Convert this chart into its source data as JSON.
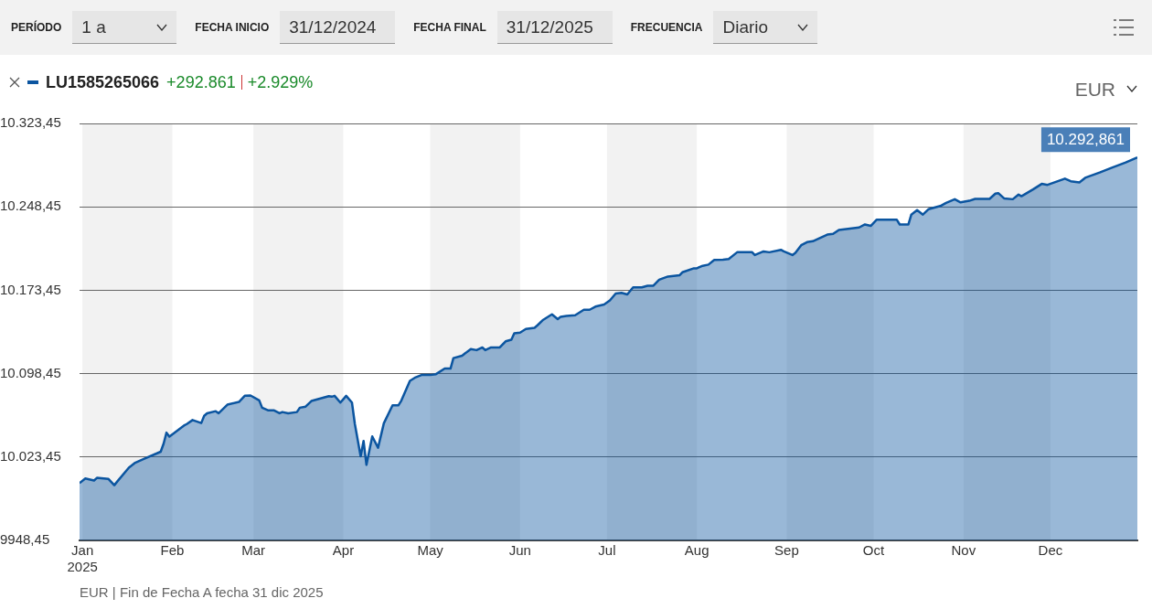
{
  "chart_data": {
    "type": "area",
    "title": "LU1585265066",
    "annotations": [
      "PERÍODO",
      "1 a",
      "FECHA INICIO",
      "31/12/2024",
      "FECHA FINAL",
      "31/12/2025",
      "FRECUENCIA",
      "Diario",
      "+292.861",
      "+2.929%",
      "EUR",
      "EUR | Fin de Fecha A fecha 31 dic 2025",
      {
        "text": "10.292,861",
        "x": "2025-12-31",
        "y": 10292.861
      }
    ],
    "x": [
      "2024-12-31",
      "2025-01-02",
      "2025-01-05",
      "2025-01-06",
      "2025-01-10",
      "2025-01-12",
      "2025-01-13",
      "2025-01-17",
      "2025-01-19",
      "2025-01-22",
      "2025-01-28",
      "2025-01-29",
      "2025-01-30",
      "2025-01-31",
      "2025-02-05",
      "2025-02-06",
      "2025-02-08",
      "2025-02-11",
      "2025-02-12",
      "2025-02-13",
      "2025-02-16",
      "2025-02-17",
      "2025-02-20",
      "2025-02-24",
      "2025-02-26",
      "2025-02-28",
      "2025-03-03",
      "2025-03-04",
      "2025-03-06",
      "2025-03-08",
      "2025-03-10",
      "2025-03-11",
      "2025-03-13",
      "2025-03-16",
      "2025-03-17",
      "2025-03-19",
      "2025-03-21",
      "2025-03-27",
      "2025-03-28",
      "2025-03-29",
      "2025-03-31",
      "2025-04-01",
      "2025-04-02",
      "2025-04-04",
      "2025-04-05",
      "2025-04-07",
      "2025-04-08",
      "2025-04-09",
      "2025-04-11",
      "2025-04-13",
      "2025-04-15",
      "2025-04-18",
      "2025-04-20",
      "2025-04-21",
      "2025-04-24",
      "2025-04-26",
      "2025-04-28",
      "2025-05-01",
      "2025-05-03",
      "2025-05-06",
      "2025-05-08",
      "2025-05-09",
      "2025-05-12",
      "2025-05-15",
      "2025-05-17",
      "2025-05-19",
      "2025-05-20",
      "2025-05-22",
      "2025-05-25",
      "2025-05-27",
      "2025-05-29",
      "2025-05-30",
      "2025-06-01",
      "2025-06-03",
      "2025-06-06",
      "2025-06-07",
      "2025-06-09",
      "2025-06-12",
      "2025-06-14",
      "2025-06-15",
      "2025-06-17",
      "2025-06-20",
      "2025-06-23",
      "2025-06-25",
      "2025-06-27",
      "2025-06-30",
      "2025-07-02",
      "2025-07-04",
      "2025-07-06",
      "2025-07-08",
      "2025-07-10",
      "2025-07-13",
      "2025-07-15",
      "2025-07-17",
      "2025-07-19",
      "2025-07-22",
      "2025-07-26",
      "2025-07-27",
      "2025-07-31",
      "2025-08-01",
      "2025-08-03",
      "2025-08-05",
      "2025-08-07",
      "2025-08-10",
      "2025-08-12",
      "2025-08-15",
      "2025-08-20",
      "2025-08-21",
      "2025-08-24",
      "2025-08-26",
      "2025-08-30",
      "2025-08-31",
      "2025-09-03",
      "2025-09-04",
      "2025-09-06",
      "2025-09-08",
      "2025-09-10",
      "2025-09-15",
      "2025-09-17",
      "2025-09-19",
      "2025-09-26",
      "2025-09-28",
      "2025-09-30",
      "2025-10-02",
      "2025-10-09",
      "2025-10-10",
      "2025-10-13",
      "2025-10-14",
      "2025-10-16",
      "2025-10-18",
      "2025-10-20",
      "2025-10-24",
      "2025-10-26",
      "2025-10-29",
      "2025-10-31",
      "2025-11-03",
      "2025-11-05",
      "2025-11-10",
      "2025-11-12",
      "2025-11-13",
      "2025-11-15",
      "2025-11-18",
      "2025-11-20",
      "2025-11-21",
      "2025-11-25",
      "2025-11-28",
      "2025-11-30",
      "2025-12-06",
      "2025-12-08",
      "2025-12-11",
      "2025-12-13",
      "2025-12-18",
      "2025-12-22",
      "2025-12-27",
      "2025-12-31"
    ],
    "series": [
      {
        "color": "#0b55a0",
        "values": [
          10000.0,
          10004.2,
          10002.3,
          10004.7,
          10003.7,
          9998.1,
          10001.4,
          10013.8,
          10018.0,
          10021.5,
          10028.2,
          10035.4,
          10045.4,
          10041.8,
          10051.7,
          10053.1,
          10056.7,
          10054.0,
          10060.5,
          10062.8,
          10064.7,
          10062.8,
          10070.5,
          10073.0,
          10078.5,
          10078.8,
          10074.4,
          10067.8,
          10065.5,
          10065.5,
          10062.8,
          10063.9,
          10062.8,
          10063.9,
          10067.8,
          10068.8,
          10073.8,
          10078.2,
          10077.7,
          10078.5,
          10072.4,
          10075.4,
          10078.5,
          10072.4,
          10053.1,
          10024.1,
          10037.9,
          10016.4,
          10042.0,
          10031.8,
          10053.8,
          10069.9,
          10069.9,
          10074.0,
          10091.9,
          10095.2,
          10097.2,
          10097.2,
          10098.0,
          10103.0,
          10103.0,
          10112.4,
          10114.6,
          10120.6,
          10119.6,
          10122.0,
          10119.6,
          10122.0,
          10122.0,
          10127.5,
          10128.9,
          10134.7,
          10135.3,
          10138.6,
          10139.7,
          10141.9,
          10146.9,
          10151.8,
          10147.4,
          10149.6,
          10150.4,
          10151.0,
          10155.9,
          10155.9,
          10158.7,
          10160.6,
          10164.3,
          10170.5,
          10171.1,
          10169.7,
          10176.1,
          10176.1,
          10177.5,
          10177.5,
          10182.9,
          10185.8,
          10186.9,
          10189.6,
          10193.2,
          10193.2,
          10195.4,
          10196.5,
          10200.7,
          10201.0,
          10201.5,
          10207.8,
          10207.8,
          10205.1,
          10208.4,
          10207.6,
          10209.8,
          10208.4,
          10205.1,
          10207.0,
          10213.9,
          10216.7,
          10217.5,
          10223.5,
          10224.1,
          10227.7,
          10229.9,
          10232.6,
          10231.3,
          10236.8,
          10236.8,
          10232.6,
          10232.6,
          10241.5,
          10245.6,
          10241.5,
          10246.4,
          10249.2,
          10252.0,
          10255.3,
          10252.5,
          10253.9,
          10255.6,
          10255.6,
          10260.3,
          10260.8,
          10256.1,
          10255.3,
          10259.5,
          10258.0,
          10264.1,
          10269.1,
          10268.2,
          10273.8,
          10271.5,
          10270.4,
          10274.6,
          10279.3,
          10283.5,
          10288.4,
          10292.861
        ]
      }
    ],
    "xlim": [
      "2024-12-31",
      "2025-12-31"
    ],
    "xticks": [
      {
        "value": "2025-01-01",
        "label": "Jan\n2025"
      },
      {
        "value": "2025-02-01",
        "label": "Feb"
      },
      {
        "value": "2025-03-01",
        "label": "Mar"
      },
      {
        "value": "2025-04-01",
        "label": "Apr"
      },
      {
        "value": "2025-05-01",
        "label": "May"
      },
      {
        "value": "2025-06-01",
        "label": "Jun"
      },
      {
        "value": "2025-07-01",
        "label": "Jul"
      },
      {
        "value": "2025-08-01",
        "label": "Aug"
      },
      {
        "value": "2025-09-01",
        "label": "Sep"
      },
      {
        "value": "2025-10-01",
        "label": "Oct"
      },
      {
        "value": "2025-11-01",
        "label": "Nov"
      },
      {
        "value": "2025-12-01",
        "label": "Dec"
      }
    ],
    "ylim": [
      9948.45,
      10323.45
    ],
    "yticks": [
      {
        "value": 9948.45,
        "label": "9948,45"
      },
      {
        "value": 10023.45,
        "label": "10.023,45"
      },
      {
        "value": 10098.45,
        "label": "10.098,45"
      },
      {
        "value": 10173.45,
        "label": "10.173,45"
      },
      {
        "value": 10248.45,
        "label": "10.248,45"
      },
      {
        "value": 10323.45,
        "label": "10.323,45"
      }
    ],
    "bands": [
      {
        "axis": "x",
        "from": "2025-01-01",
        "to": "2025-02-01",
        "color": "#f2f2f2"
      },
      {
        "axis": "x",
        "from": "2025-03-01",
        "to": "2025-04-01",
        "color": "#f2f2f2"
      },
      {
        "axis": "x",
        "from": "2025-05-01",
        "to": "2025-06-01",
        "color": "#f2f2f2"
      },
      {
        "axis": "x",
        "from": "2025-07-01",
        "to": "2025-08-01",
        "color": "#f2f2f2"
      },
      {
        "axis": "x",
        "from": "2025-09-01",
        "to": "2025-10-01",
        "color": "#f2f2f2"
      },
      {
        "axis": "x",
        "from": "2025-11-01",
        "to": "2025-12-01",
        "color": "#f2f2f2"
      }
    ],
    "grid": "y"
  }
}
